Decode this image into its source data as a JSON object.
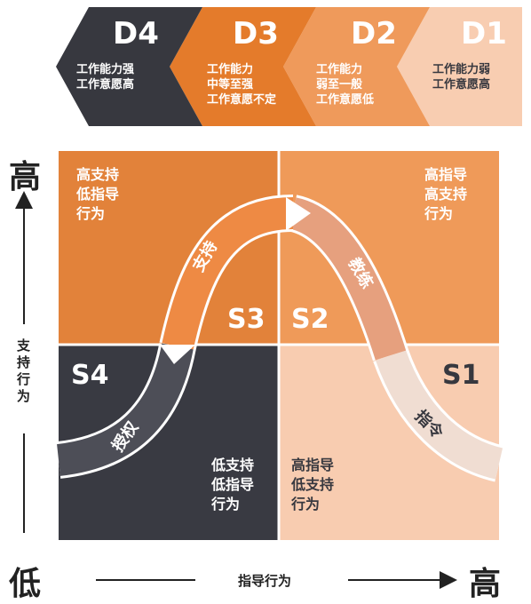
{
  "development_levels": [
    {
      "code": "D4",
      "desc": [
        "工作能力强",
        "工作意愿高"
      ]
    },
    {
      "code": "D3",
      "desc": [
        "工作能力",
        "中等至强",
        "工作意愿不定"
      ]
    },
    {
      "code": "D2",
      "desc": [
        "工作能力",
        "弱至一般",
        "工作意愿低"
      ]
    },
    {
      "code": "D1",
      "desc": [
        "工作能力弱",
        "工作意愿高"
      ]
    }
  ],
  "quadrants": {
    "top_left": {
      "behavior": [
        "高支持",
        "低指导",
        "行为"
      ],
      "style": "S3"
    },
    "top_right": {
      "behavior": [
        "高指导",
        "高支持",
        "行为"
      ],
      "style": "S2"
    },
    "bottom_left": {
      "behavior": [
        "低支持",
        "低指导",
        "行为"
      ],
      "style": "S4"
    },
    "bottom_right": {
      "behavior": [
        "高指导",
        "低支持",
        "行为"
      ],
      "style": "S1"
    }
  },
  "curve_labels": {
    "s1": "指令",
    "s2": "教练",
    "s3": "支持",
    "s4": "授权"
  },
  "axes": {
    "y_label": "支持行为",
    "y_high": "高",
    "x_label": "指导行为",
    "x_low": "低",
    "x_high": "高"
  },
  "colors": {
    "dark": "#37383f",
    "d3_orange": "#e47b2b",
    "d2_orange": "#ef9a5b",
    "light_peach": "#f8cdb1",
    "q_top_left": "#e2823a",
    "q_top_right": "#ef9a59",
    "q_bottom_left": "#393a42",
    "q_bottom_right": "#f8ccb0"
  }
}
